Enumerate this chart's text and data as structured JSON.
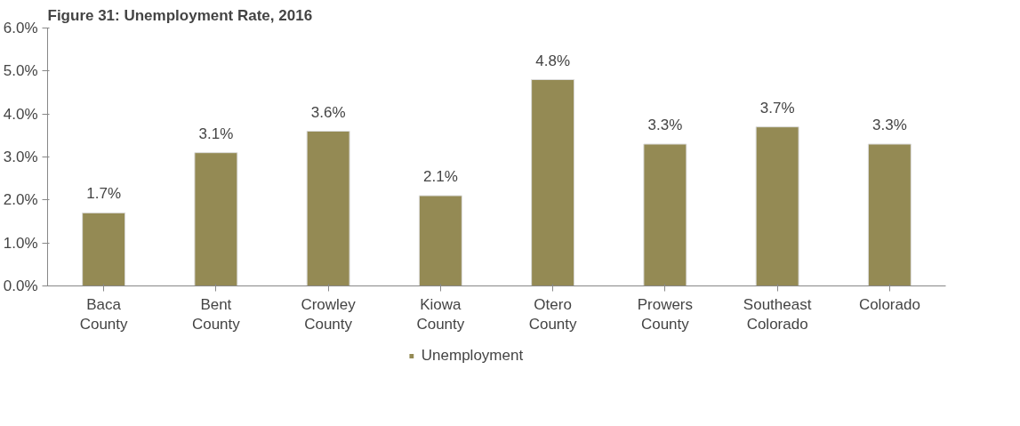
{
  "chart_data": {
    "type": "bar",
    "title": "Figure 31: Unemployment Rate, 2016",
    "categories": [
      "Baca\nCounty",
      "Bent\nCounty",
      "Crowley\nCounty",
      "Kiowa\nCounty",
      "Otero\nCounty",
      "Prowers\nCounty",
      "Southeast\nColorado",
      "Colorado"
    ],
    "series": [
      {
        "name": "Unemployment",
        "color": "#948a54",
        "values": [
          1.7,
          3.1,
          3.6,
          2.1,
          4.8,
          3.3,
          3.7,
          3.3
        ],
        "value_labels": [
          "1.7%",
          "3.1%",
          "3.6%",
          "2.1%",
          "4.8%",
          "3.3%",
          "3.7%",
          "3.3%"
        ]
      }
    ],
    "ylim": [
      0,
      6
    ],
    "yticks": [
      {
        "value": 0,
        "label": "0.0%"
      },
      {
        "value": 1,
        "label": "1.0%"
      },
      {
        "value": 2,
        "label": "2.0%"
      },
      {
        "value": 3,
        "label": "3.0%"
      },
      {
        "value": 4,
        "label": "4.0%"
      },
      {
        "value": 5,
        "label": "5.0%"
      },
      {
        "value": 6,
        "label": "6.0%"
      }
    ],
    "grid": false,
    "legend": "bottom"
  }
}
